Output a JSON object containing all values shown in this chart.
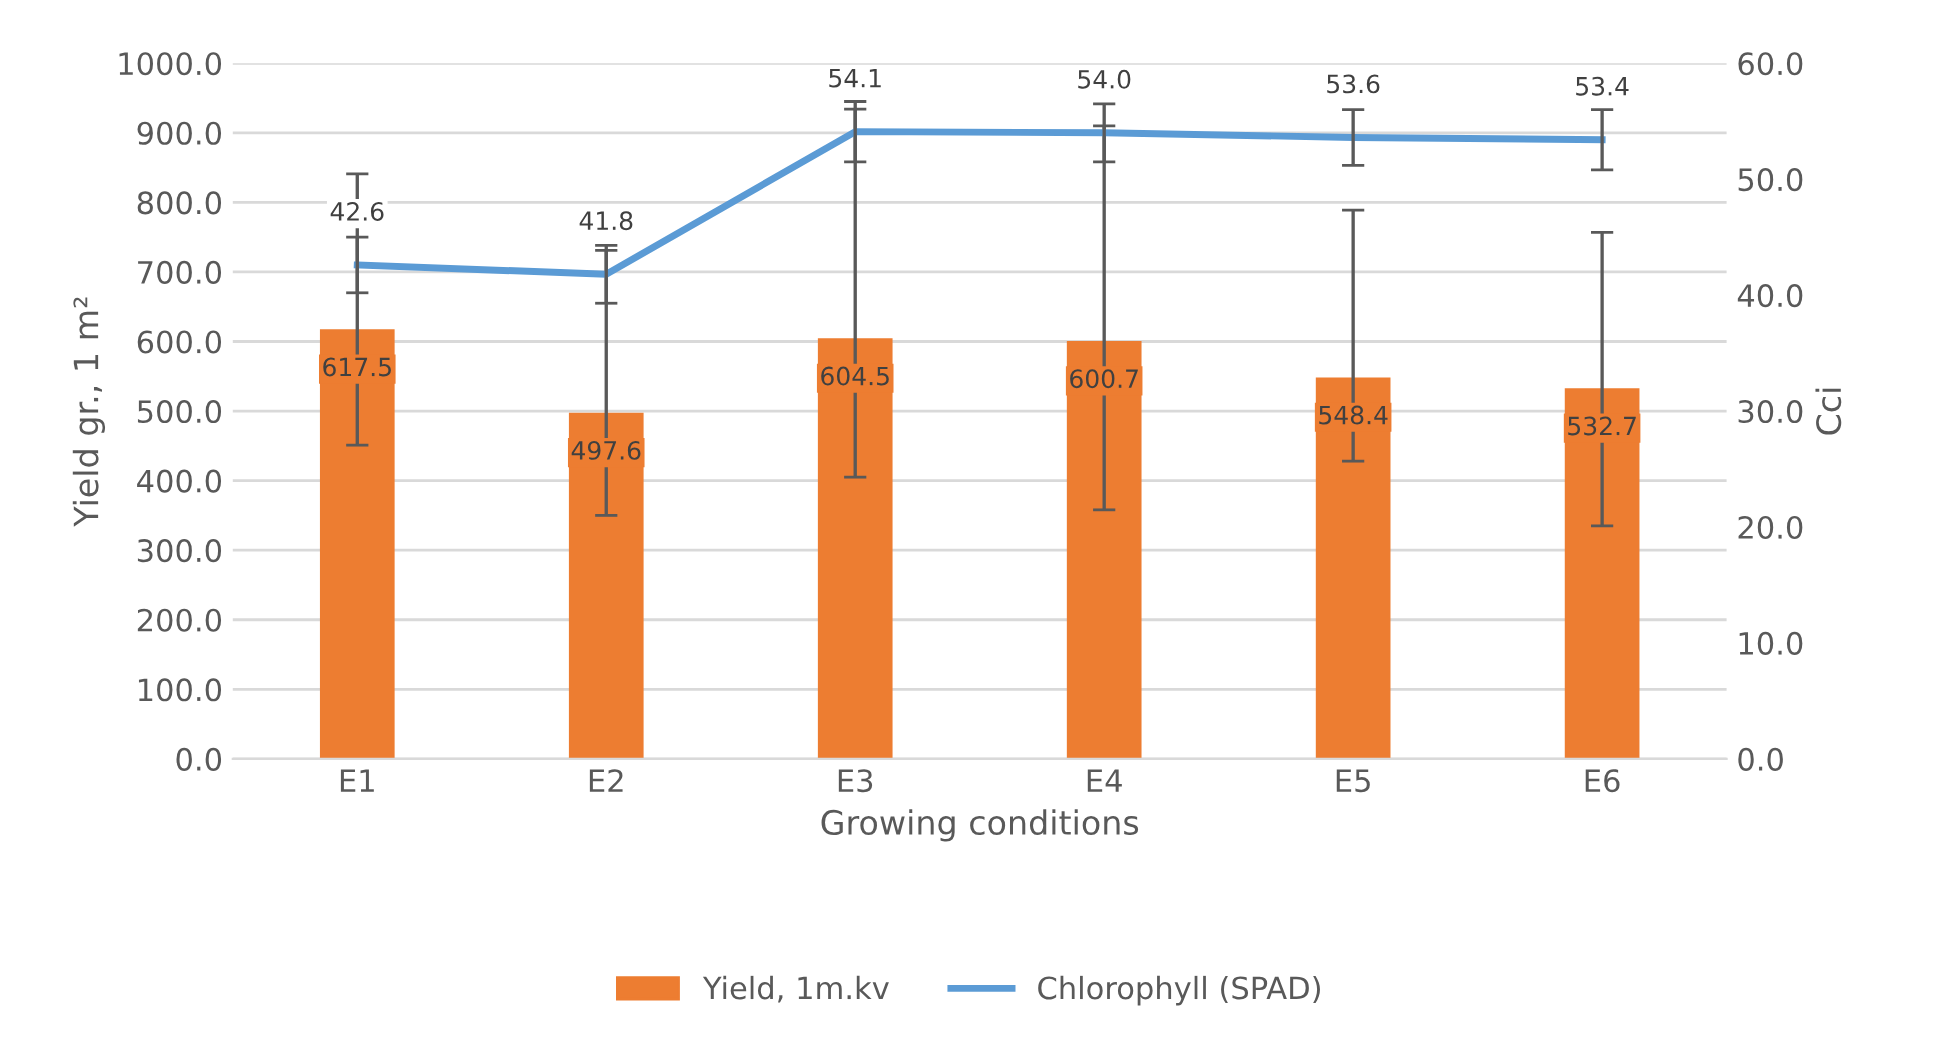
{
  "chart_data": {
    "type": "bar",
    "xlabel": "Growing conditions",
    "ylabel": "Yield gr., 1 m²",
    "y2label": "Cci",
    "categories": [
      "E1",
      "E2",
      "E3",
      "E4",
      "E5",
      "E6"
    ],
    "series": [
      {
        "name": "Yield, 1m.kv",
        "color": "#ed7d31",
        "values": [
          617.5,
          497.6,
          604.5,
          600.7,
          548.4,
          532.7
        ],
        "value_labels": [
          "617.5",
          "497.6",
          "604.5",
          "600.7",
          "548.4",
          "532.7"
        ],
        "errors": [
          [
            451,
            841
          ],
          [
            350,
            731
          ],
          [
            405,
            934
          ],
          [
            358,
            910
          ],
          [
            428,
            789
          ],
          [
            335,
            757
          ]
        ]
      },
      {
        "name": "Chlorophyll (SPAD)",
        "type": "line",
        "axis": "y2",
        "color": "#5b9bd5",
        "values": [
          42.6,
          41.8,
          54.1,
          54.0,
          53.6,
          53.4
        ],
        "value_labels": [
          "42.6",
          "41.8",
          "54.1",
          "54.0",
          "53.6",
          "53.4"
        ],
        "errors": [
          2.4,
          2.5,
          2.6,
          2.5,
          2.4,
          2.6
        ]
      }
    ],
    "ylim": [
      0,
      1000
    ],
    "yticks": [
      {
        "value": 0,
        "label": "0.0"
      },
      {
        "value": 100,
        "label": "100.0"
      },
      {
        "value": 200,
        "label": "200.0"
      },
      {
        "value": 300,
        "label": "300.0"
      },
      {
        "value": 400,
        "label": "400.0"
      },
      {
        "value": 500,
        "label": "500.0"
      },
      {
        "value": 600,
        "label": "600.0"
      },
      {
        "value": 700,
        "label": "700.0"
      },
      {
        "value": 800,
        "label": "800.0"
      },
      {
        "value": 900,
        "label": "900.0"
      },
      {
        "value": 1000,
        "label": "1000.0"
      }
    ],
    "y2lim": [
      0,
      60
    ],
    "y2ticks": [
      {
        "value": 0,
        "label": "0.0"
      },
      {
        "value": 10,
        "label": "10.0"
      },
      {
        "value": 20,
        "label": "20.0"
      },
      {
        "value": 30,
        "label": "30.0"
      },
      {
        "value": 40,
        "label": "40.0"
      },
      {
        "value": 50,
        "label": "50.0"
      },
      {
        "value": 60,
        "label": "60.0"
      }
    ],
    "grid": "y",
    "legend": "bottom"
  }
}
